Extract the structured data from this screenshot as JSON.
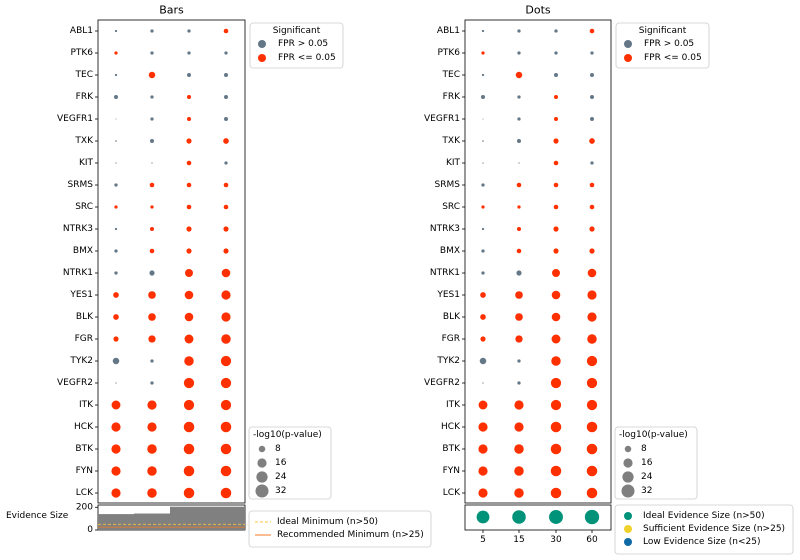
{
  "colors": {
    "significant": "#ff3000",
    "not_significant": "#647787",
    "size_legend": "#7f7f7f",
    "ideal_evidence": "#00937a",
    "sufficient_evidence": "#f1d22c",
    "low_evidence": "#116aa8",
    "ideal_min_line": "#f5c33a",
    "recommended_min_line": "#f47a20",
    "evidence_bar": "#808080"
  },
  "chart_data": [
    {
      "type": "scatter",
      "title": "Bars",
      "kinases": [
        "ABL1",
        "PTK6",
        "TEC",
        "FRK",
        "VEGFR1",
        "TXK",
        "KIT",
        "SRMS",
        "SRC",
        "NTRK3",
        "BMX",
        "NTRK1",
        "YES1",
        "BLK",
        "FGR",
        "TYK2",
        "VEGFR2",
        "ITK",
        "HCK",
        "BTK",
        "FYN",
        "LCK"
      ],
      "evidence_label": "Evidence Size",
      "evidence_ticks": [
        "200",
        "0"
      ],
      "evidence_ylim": [
        0,
        220
      ],
      "evidence_steps": [
        {
          "x_start": 0.5,
          "x_end": 1.5,
          "value": 140
        },
        {
          "x_start": 1.5,
          "x_end": 2.5,
          "value": 145
        },
        {
          "x_start": 2.5,
          "x_end": 4.8,
          "value": 205
        }
      ],
      "ideal_min": 50,
      "recommended_min": 25,
      "significance_legend": {
        "title": "Significant",
        "items": [
          "FPR > 0.05",
          "FPR <= 0.05"
        ]
      },
      "size_legend": {
        "title": "-log10(p-value)",
        "values": [
          "8",
          "16",
          "24",
          "32"
        ]
      },
      "evidence_legend": [
        "Ideal Minimum (n>50)",
        "Recommended Minimum (n>25)"
      ],
      "columns": [
        {
          "neglogp": [
            1,
            2,
            1,
            3,
            0,
            0.5,
            0.3,
            2,
            2,
            1,
            2,
            2,
            6,
            6,
            5,
            8,
            0.3,
            15,
            16,
            16,
            16,
            16
          ],
          "significant": [
            false,
            true,
            false,
            false,
            false,
            false,
            false,
            false,
            true,
            false,
            false,
            false,
            true,
            true,
            true,
            false,
            false,
            true,
            true,
            true,
            true,
            true
          ]
        },
        {
          "neglogp": [
            2,
            2,
            8,
            2,
            2,
            3,
            0.3,
            4,
            2,
            3,
            4,
            5,
            11,
            11,
            10,
            2,
            2,
            16,
            16,
            17,
            17,
            17
          ],
          "significant": [
            false,
            false,
            true,
            false,
            false,
            false,
            false,
            true,
            true,
            true,
            true,
            false,
            true,
            true,
            true,
            false,
            false,
            true,
            true,
            true,
            true,
            true
          ]
        },
        {
          "neglogp": [
            2,
            2,
            3,
            3,
            3,
            5,
            4,
            4,
            4,
            5,
            5,
            12,
            14,
            14,
            15,
            17,
            20,
            20,
            21,
            21,
            21,
            21
          ],
          "significant": [
            false,
            false,
            false,
            true,
            true,
            true,
            true,
            true,
            true,
            true,
            true,
            true,
            true,
            true,
            true,
            true,
            true,
            true,
            true,
            true,
            true,
            true
          ]
        },
        {
          "neglogp": [
            4,
            2,
            3,
            3,
            3,
            6,
            2,
            4,
            4,
            5,
            5,
            14,
            16,
            16,
            17,
            20,
            20,
            20,
            21,
            21,
            21,
            21
          ],
          "significant": [
            true,
            false,
            false,
            false,
            false,
            true,
            false,
            true,
            true,
            true,
            true,
            true,
            true,
            true,
            true,
            true,
            true,
            true,
            true,
            true,
            true,
            true
          ]
        }
      ]
    },
    {
      "type": "scatter",
      "title": "Dots",
      "kinases": [
        "ABL1",
        "PTK6",
        "TEC",
        "FRK",
        "VEGFR1",
        "TXK",
        "KIT",
        "SRMS",
        "SRC",
        "NTRK3",
        "BMX",
        "NTRK1",
        "YES1",
        "BLK",
        "FGR",
        "TYK2",
        "VEGFR2",
        "ITK",
        "HCK",
        "BTK",
        "FYN",
        "LCK"
      ],
      "x_ticks": [
        "5",
        "15",
        "30",
        "60"
      ],
      "evidence_values": [
        16,
        18,
        19,
        20
      ],
      "evidence_status": [
        "ideal",
        "ideal",
        "ideal",
        "ideal"
      ],
      "significance_legend": {
        "title": "Significant",
        "items": [
          "FPR > 0.05",
          "FPR <= 0.05"
        ]
      },
      "size_legend": {
        "title": "-log10(p-value)",
        "values": [
          "8",
          "16",
          "24",
          "32"
        ]
      },
      "evidence_legend": [
        "Ideal Evidence Size (n>50)",
        "Sufficient Evidence Size (n>25)",
        "Low Evidence Size (n<25)"
      ],
      "columns": [
        {
          "neglogp": [
            1,
            2,
            1,
            3,
            0,
            0.5,
            0.3,
            2,
            2,
            1,
            2,
            2,
            6,
            6,
            5,
            8,
            0.3,
            15,
            16,
            16,
            16,
            16
          ],
          "significant": [
            false,
            true,
            false,
            false,
            false,
            false,
            false,
            false,
            true,
            false,
            false,
            false,
            true,
            true,
            true,
            false,
            false,
            true,
            true,
            true,
            true,
            true
          ]
        },
        {
          "neglogp": [
            2,
            2,
            8,
            2,
            2,
            3,
            0.3,
            4,
            2,
            3,
            4,
            5,
            11,
            11,
            10,
            2,
            2,
            16,
            16,
            17,
            17,
            17
          ],
          "significant": [
            false,
            false,
            true,
            false,
            false,
            false,
            false,
            true,
            true,
            true,
            true,
            false,
            true,
            true,
            true,
            false,
            false,
            true,
            true,
            true,
            true,
            true
          ]
        },
        {
          "neglogp": [
            2,
            2,
            3,
            3,
            3,
            5,
            4,
            4,
            4,
            5,
            5,
            12,
            14,
            14,
            15,
            17,
            20,
            20,
            21,
            21,
            21,
            21
          ],
          "significant": [
            false,
            false,
            false,
            true,
            true,
            true,
            true,
            true,
            true,
            true,
            true,
            true,
            true,
            true,
            true,
            true,
            true,
            true,
            true,
            true,
            true,
            true
          ]
        },
        {
          "neglogp": [
            4,
            2,
            3,
            3,
            3,
            6,
            2,
            4,
            4,
            5,
            5,
            14,
            16,
            16,
            17,
            20,
            20,
            20,
            21,
            21,
            21,
            21
          ],
          "significant": [
            true,
            false,
            false,
            false,
            false,
            true,
            false,
            true,
            true,
            true,
            true,
            true,
            true,
            true,
            true,
            true,
            true,
            true,
            true,
            true,
            true,
            true
          ]
        }
      ]
    }
  ]
}
